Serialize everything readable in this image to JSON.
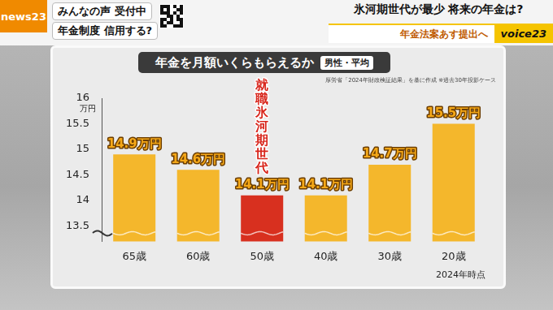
{
  "header": {
    "logo": "news23",
    "left_lines": [
      "みんなの声 受付中",
      "年金制度 信用する?"
    ],
    "headline": "氷河期世代が最少 将来の年金は?",
    "subline": "年金法案あす提出へ",
    "corner": "voice23"
  },
  "chart_data": {
    "type": "bar",
    "title": "年金を月額いくらもらえるか",
    "subtitle": "男性・平均",
    "source": "厚労省「2024年財政検証結果」を基に作成 ※過去30年投影ケース",
    "y_label": "万円",
    "note": "2024年時点",
    "categories": [
      "65歳",
      "60歳",
      "50歳",
      "40歳",
      "30歳",
      "20歳"
    ],
    "values": [
      14.9,
      14.6,
      14.1,
      14.1,
      14.7,
      15.5
    ],
    "value_labels": [
      "14.9万円",
      "14.6万円",
      "14.1万円",
      "14.1万円",
      "14.7万円",
      "15.5万円"
    ],
    "colors": [
      "#f4b72c",
      "#f4b72c",
      "#d8301f",
      "#f4b72c",
      "#f4b72c",
      "#f4b72c"
    ],
    "annotations": [
      {
        "text": "就職氷河期世代",
        "category": "50歳"
      }
    ],
    "ylim": [
      13.2,
      16
    ],
    "yticks": [
      13.5,
      14,
      14.5,
      15,
      15.5,
      16
    ],
    "grid": false,
    "data_labels": true
  }
}
